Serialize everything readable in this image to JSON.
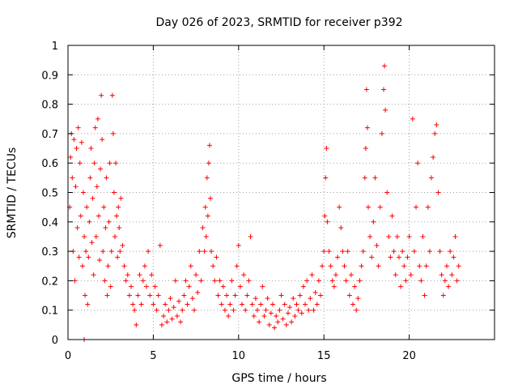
{
  "chart_data": {
    "type": "scatter",
    "title": "Day 026 of 2023, SRMTID for receiver p392",
    "xlabel": "GPS time / hours",
    "ylabel": "SRMTID / TECUs",
    "xlim": [
      0,
      25
    ],
    "ylim": [
      0,
      1
    ],
    "xticks": [
      0,
      5,
      10,
      15,
      20
    ],
    "xtick_labels": [
      "0",
      "5",
      "10",
      "15",
      "20"
    ],
    "yticks": [
      0,
      0.1,
      0.2,
      0.3,
      0.4,
      0.5,
      0.6,
      0.7,
      0.8,
      0.9,
      1
    ],
    "ytick_labels": [
      "0",
      "0.1",
      "0.2",
      "0.3",
      "0.4",
      "0.5",
      "0.6",
      "0.7",
      "0.8",
      "0.9",
      "1"
    ],
    "grid": true,
    "marker": "plus",
    "color": "#ff0000",
    "series": [
      {
        "name": "SRMTID",
        "points": [
          [
            0.1,
            0.45
          ],
          [
            0.15,
            0.62
          ],
          [
            0.2,
            0.7
          ],
          [
            0.25,
            0.55
          ],
          [
            0.3,
            0.3
          ],
          [
            0.35,
            0.68
          ],
          [
            0.4,
            0.2
          ],
          [
            0.45,
            0.52
          ],
          [
            0.5,
            0.65
          ],
          [
            0.55,
            0.38
          ],
          [
            0.6,
            0.72
          ],
          [
            0.65,
            0.28
          ],
          [
            0.7,
            0.6
          ],
          [
            0.75,
            0.42
          ],
          [
            0.8,
            0.67
          ],
          [
            0.85,
            0.25
          ],
          [
            0.9,
            0.5
          ],
          [
            0.95,
            0.35
          ],
          [
            1.0,
            0.15
          ],
          [
            1.05,
            0.3
          ],
          [
            1.1,
            0.45
          ],
          [
            1.15,
            0.12
          ],
          [
            1.2,
            0.28
          ],
          [
            1.25,
            0.4
          ],
          [
            1.3,
            0.55
          ],
          [
            1.35,
            0.65
          ],
          [
            1.4,
            0.33
          ],
          [
            1.45,
            0.48
          ],
          [
            1.5,
            0.22
          ],
          [
            1.55,
            0.6
          ],
          [
            1.6,
            0.72
          ],
          [
            1.65,
            0.35
          ],
          [
            1.7,
            0.52
          ],
          [
            1.75,
            0.75
          ],
          [
            1.8,
            0.42
          ],
          [
            1.85,
            0.27
          ],
          [
            1.9,
            0.58
          ],
          [
            1.95,
            0.83
          ],
          [
            2.0,
            0.68
          ],
          [
            2.05,
            0.3
          ],
          [
            2.1,
            0.45
          ],
          [
            2.15,
            0.2
          ],
          [
            2.2,
            0.38
          ],
          [
            2.25,
            0.55
          ],
          [
            2.3,
            0.15
          ],
          [
            2.35,
            0.25
          ],
          [
            2.4,
            0.4
          ],
          [
            2.45,
            0.6
          ],
          [
            2.5,
            0.18
          ],
          [
            2.55,
            0.3
          ],
          [
            2.6,
            0.83
          ],
          [
            2.65,
            0.7
          ],
          [
            2.7,
            0.5
          ],
          [
            2.75,
            0.35
          ],
          [
            2.8,
            0.6
          ],
          [
            2.85,
            0.42
          ],
          [
            2.9,
            0.28
          ],
          [
            2.95,
            0.45
          ],
          [
            3.0,
            0.38
          ],
          [
            3.05,
            0.3
          ],
          [
            3.1,
            0.48
          ],
          [
            3.2,
            0.32
          ],
          [
            3.3,
            0.25
          ],
          [
            3.4,
            0.2
          ],
          [
            3.5,
            0.22
          ],
          [
            3.6,
            0.15
          ],
          [
            3.7,
            0.18
          ],
          [
            3.8,
            0.12
          ],
          [
            3.9,
            0.1
          ],
          [
            4.0,
            0.05
          ],
          [
            4.1,
            0.15
          ],
          [
            4.2,
            0.22
          ],
          [
            4.3,
            0.12
          ],
          [
            4.4,
            0.2
          ],
          [
            4.5,
            0.25
          ],
          [
            4.6,
            0.18
          ],
          [
            4.7,
            0.3
          ],
          [
            4.8,
            0.15
          ],
          [
            4.9,
            0.22
          ],
          [
            5.0,
            0.12
          ],
          [
            5.1,
            0.18
          ],
          [
            5.2,
            0.1
          ],
          [
            5.3,
            0.15
          ],
          [
            5.4,
            0.32
          ],
          [
            5.5,
            0.05
          ],
          [
            5.6,
            0.08
          ],
          [
            5.7,
            0.12
          ],
          [
            5.8,
            0.06
          ],
          [
            5.9,
            0.1
          ],
          [
            6.0,
            0.14
          ],
          [
            6.1,
            0.07
          ],
          [
            6.2,
            0.11
          ],
          [
            6.3,
            0.2
          ],
          [
            6.4,
            0.08
          ],
          [
            6.5,
            0.13
          ],
          [
            6.6,
            0.06
          ],
          [
            6.7,
            0.1
          ],
          [
            6.8,
            0.15
          ],
          [
            6.9,
            0.2
          ],
          [
            7.0,
            0.12
          ],
          [
            7.1,
            0.18
          ],
          [
            7.2,
            0.25
          ],
          [
            7.3,
            0.14
          ],
          [
            7.4,
            0.1
          ],
          [
            7.5,
            0.22
          ],
          [
            7.6,
            0.16
          ],
          [
            7.7,
            0.3
          ],
          [
            7.8,
            0.2
          ],
          [
            7.9,
            0.38
          ],
          [
            8.0,
            0.3
          ],
          [
            8.05,
            0.45
          ],
          [
            8.1,
            0.35
          ],
          [
            8.15,
            0.55
          ],
          [
            8.2,
            0.42
          ],
          [
            8.25,
            0.6
          ],
          [
            8.3,
            0.66
          ],
          [
            8.35,
            0.48
          ],
          [
            8.4,
            0.3
          ],
          [
            8.5,
            0.25
          ],
          [
            8.6,
            0.2
          ],
          [
            8.7,
            0.28
          ],
          [
            8.8,
            0.15
          ],
          [
            8.9,
            0.2
          ],
          [
            9.0,
            0.12
          ],
          [
            9.1,
            0.18
          ],
          [
            9.2,
            0.1
          ],
          [
            9.3,
            0.15
          ],
          [
            9.4,
            0.08
          ],
          [
            9.5,
            0.12
          ],
          [
            9.6,
            0.2
          ],
          [
            9.7,
            0.1
          ],
          [
            9.8,
            0.15
          ],
          [
            9.9,
            0.25
          ],
          [
            10.0,
            0.32
          ],
          [
            10.1,
            0.18
          ],
          [
            10.2,
            0.12
          ],
          [
            10.3,
            0.22
          ],
          [
            10.4,
            0.1
          ],
          [
            10.5,
            0.15
          ],
          [
            10.6,
            0.2
          ],
          [
            10.7,
            0.35
          ],
          [
            10.8,
            0.12
          ],
          [
            10.9,
            0.08
          ],
          [
            11.0,
            0.14
          ],
          [
            11.1,
            0.1
          ],
          [
            11.2,
            0.06
          ],
          [
            11.3,
            0.12
          ],
          [
            11.4,
            0.18
          ],
          [
            11.5,
            0.08
          ],
          [
            11.6,
            0.1
          ],
          [
            11.7,
            0.14
          ],
          [
            11.8,
            0.05
          ],
          [
            11.9,
            0.09
          ],
          [
            12.0,
            0.12
          ],
          [
            12.1,
            0.04
          ],
          [
            12.2,
            0.08
          ],
          [
            12.3,
            0.06
          ],
          [
            12.4,
            0.1
          ],
          [
            12.5,
            0.15
          ],
          [
            12.6,
            0.07
          ],
          [
            12.7,
            0.12
          ],
          [
            12.8,
            0.05
          ],
          [
            12.9,
            0.09
          ],
          [
            13.0,
            0.11
          ],
          [
            13.1,
            0.06
          ],
          [
            13.2,
            0.14
          ],
          [
            13.3,
            0.08
          ],
          [
            13.4,
            0.12
          ],
          [
            13.5,
            0.1
          ],
          [
            13.6,
            0.15
          ],
          [
            13.7,
            0.09
          ],
          [
            13.8,
            0.18
          ],
          [
            13.9,
            0.12
          ],
          [
            14.0,
            0.2
          ],
          [
            14.1,
            0.1
          ],
          [
            14.2,
            0.14
          ],
          [
            14.3,
            0.22
          ],
          [
            14.4,
            0.1
          ],
          [
            14.5,
            0.16
          ],
          [
            14.6,
            0.12
          ],
          [
            14.7,
            0.2
          ],
          [
            14.8,
            0.15
          ],
          [
            14.9,
            0.25
          ],
          [
            15.0,
            0.3
          ],
          [
            15.05,
            0.42
          ],
          [
            15.1,
            0.55
          ],
          [
            15.15,
            0.65
          ],
          [
            15.2,
            0.4
          ],
          [
            15.3,
            0.3
          ],
          [
            15.4,
            0.25
          ],
          [
            15.5,
            0.2
          ],
          [
            15.6,
            0.18
          ],
          [
            15.7,
            0.22
          ],
          [
            15.8,
            0.28
          ],
          [
            15.9,
            0.45
          ],
          [
            16.0,
            0.38
          ],
          [
            16.1,
            0.3
          ],
          [
            16.2,
            0.25
          ],
          [
            16.3,
            0.2
          ],
          [
            16.4,
            0.3
          ],
          [
            16.5,
            0.15
          ],
          [
            16.6,
            0.22
          ],
          [
            16.7,
            0.12
          ],
          [
            16.8,
            0.18
          ],
          [
            16.9,
            0.1
          ],
          [
            17.0,
            0.14
          ],
          [
            17.1,
            0.2
          ],
          [
            17.2,
            0.25
          ],
          [
            17.3,
            0.3
          ],
          [
            17.4,
            0.55
          ],
          [
            17.45,
            0.65
          ],
          [
            17.5,
            0.85
          ],
          [
            17.55,
            0.72
          ],
          [
            17.6,
            0.45
          ],
          [
            17.7,
            0.35
          ],
          [
            17.8,
            0.28
          ],
          [
            17.9,
            0.4
          ],
          [
            18.0,
            0.55
          ],
          [
            18.1,
            0.32
          ],
          [
            18.2,
            0.25
          ],
          [
            18.3,
            0.45
          ],
          [
            18.4,
            0.7
          ],
          [
            18.5,
            0.85
          ],
          [
            18.55,
            0.93
          ],
          [
            18.6,
            0.78
          ],
          [
            18.7,
            0.5
          ],
          [
            18.8,
            0.35
          ],
          [
            18.9,
            0.28
          ],
          [
            19.0,
            0.42
          ],
          [
            19.1,
            0.3
          ],
          [
            19.2,
            0.22
          ],
          [
            19.3,
            0.35
          ],
          [
            19.4,
            0.28
          ],
          [
            19.5,
            0.18
          ],
          [
            19.6,
            0.3
          ],
          [
            19.7,
            0.25
          ],
          [
            19.8,
            0.2
          ],
          [
            19.9,
            0.28
          ],
          [
            20.0,
            0.35
          ],
          [
            20.1,
            0.22
          ],
          [
            20.2,
            0.75
          ],
          [
            20.3,
            0.3
          ],
          [
            20.4,
            0.45
          ],
          [
            20.5,
            0.6
          ],
          [
            20.6,
            0.25
          ],
          [
            20.7,
            0.2
          ],
          [
            20.8,
            0.35
          ],
          [
            20.9,
            0.15
          ],
          [
            21.0,
            0.25
          ],
          [
            21.1,
            0.45
          ],
          [
            21.2,
            0.3
          ],
          [
            21.3,
            0.55
          ],
          [
            21.4,
            0.62
          ],
          [
            21.5,
            0.7
          ],
          [
            21.6,
            0.73
          ],
          [
            21.7,
            0.5
          ],
          [
            21.8,
            0.3
          ],
          [
            21.9,
            0.22
          ],
          [
            22.0,
            0.15
          ],
          [
            22.1,
            0.2
          ],
          [
            22.2,
            0.25
          ],
          [
            22.3,
            0.18
          ],
          [
            22.4,
            0.3
          ],
          [
            22.5,
            0.22
          ],
          [
            22.6,
            0.28
          ],
          [
            22.7,
            0.35
          ],
          [
            22.8,
            0.2
          ],
          [
            22.9,
            0.25
          ],
          [
            0.95,
            0.0
          ]
        ]
      }
    ]
  }
}
